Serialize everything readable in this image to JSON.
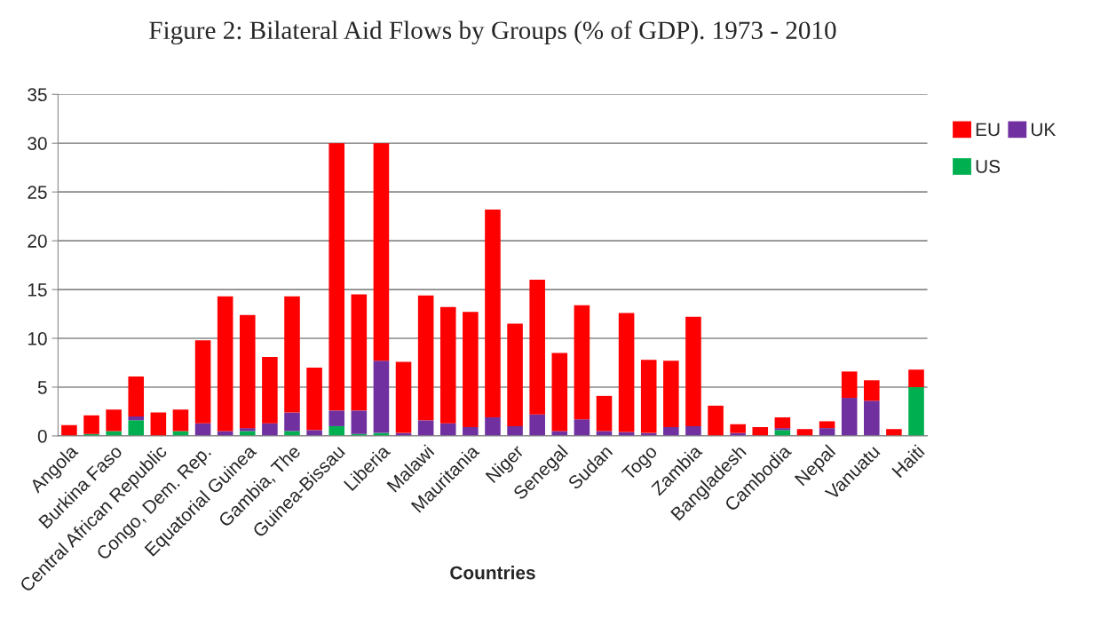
{
  "chart_data": {
    "type": "bar",
    "title": "Figure 2: Bilateral Aid Flows by Groups (% of GDP). 1973 - 2010",
    "xlabel": "Countries",
    "categories": [
      "Angola",
      null,
      "Burkina Faso",
      null,
      "Central African Republic",
      null,
      "Congo, Dem. Rep.",
      null,
      "Equatorial Guinea",
      null,
      "Gambia, The",
      null,
      "Guinea-Bissau",
      null,
      "Liberia",
      null,
      "Malawi",
      null,
      "Mauritania",
      null,
      "Niger",
      null,
      "Senegal",
      null,
      "Sudan",
      null,
      "Togo",
      null,
      "Zambia",
      null,
      "Bangladesh",
      null,
      "Cambodia",
      null,
      "Nepal",
      null,
      "Vanuatu",
      null,
      "Haiti"
    ],
    "stacked": true,
    "series": [
      {
        "name": "US",
        "color": "#00b050",
        "values": [
          0,
          0.2,
          0.5,
          1.6,
          0,
          0.5,
          0,
          0,
          0.5,
          0,
          0.5,
          0,
          1.0,
          0.2,
          0.3,
          0,
          0,
          0,
          0,
          0,
          0,
          0,
          0,
          0,
          0,
          0,
          0,
          0,
          0,
          0,
          0,
          0,
          0.6,
          0,
          0,
          0,
          0,
          0,
          5.0
        ]
      },
      {
        "name": "UK",
        "color": "#7030a0",
        "values": [
          0,
          0,
          0,
          0.4,
          0,
          0,
          1.3,
          0.5,
          0.3,
          1.3,
          1.9,
          0.6,
          1.6,
          2.4,
          7.4,
          0.3,
          1.6,
          1.3,
          0.9,
          1.9,
          1.0,
          2.2,
          0.5,
          1.7,
          0.5,
          0.4,
          0.3,
          0.9,
          1.0,
          0,
          0.3,
          0,
          0.2,
          0,
          0.8,
          3.9,
          3.6,
          0,
          0
        ]
      },
      {
        "name": "EU",
        "color": "#ff0000",
        "values": [
          1.1,
          1.9,
          2.2,
          4.1,
          2.4,
          2.2,
          8.5,
          13.8,
          11.6,
          6.8,
          11.9,
          6.4,
          27.4,
          11.9,
          22.3,
          7.3,
          12.8,
          11.9,
          11.8,
          21.3,
          10.5,
          13.8,
          8.0,
          11.7,
          3.6,
          12.2,
          7.5,
          6.8,
          11.2,
          3.1,
          0.9,
          0.9,
          1.1,
          0.7,
          0.7,
          2.7,
          2.1,
          0.7,
          1.8
        ]
      }
    ],
    "ylim": [
      0,
      35
    ],
    "yticks": [
      0,
      5,
      10,
      15,
      20,
      25,
      30,
      35
    ],
    "grid": "y",
    "legend": "right"
  }
}
